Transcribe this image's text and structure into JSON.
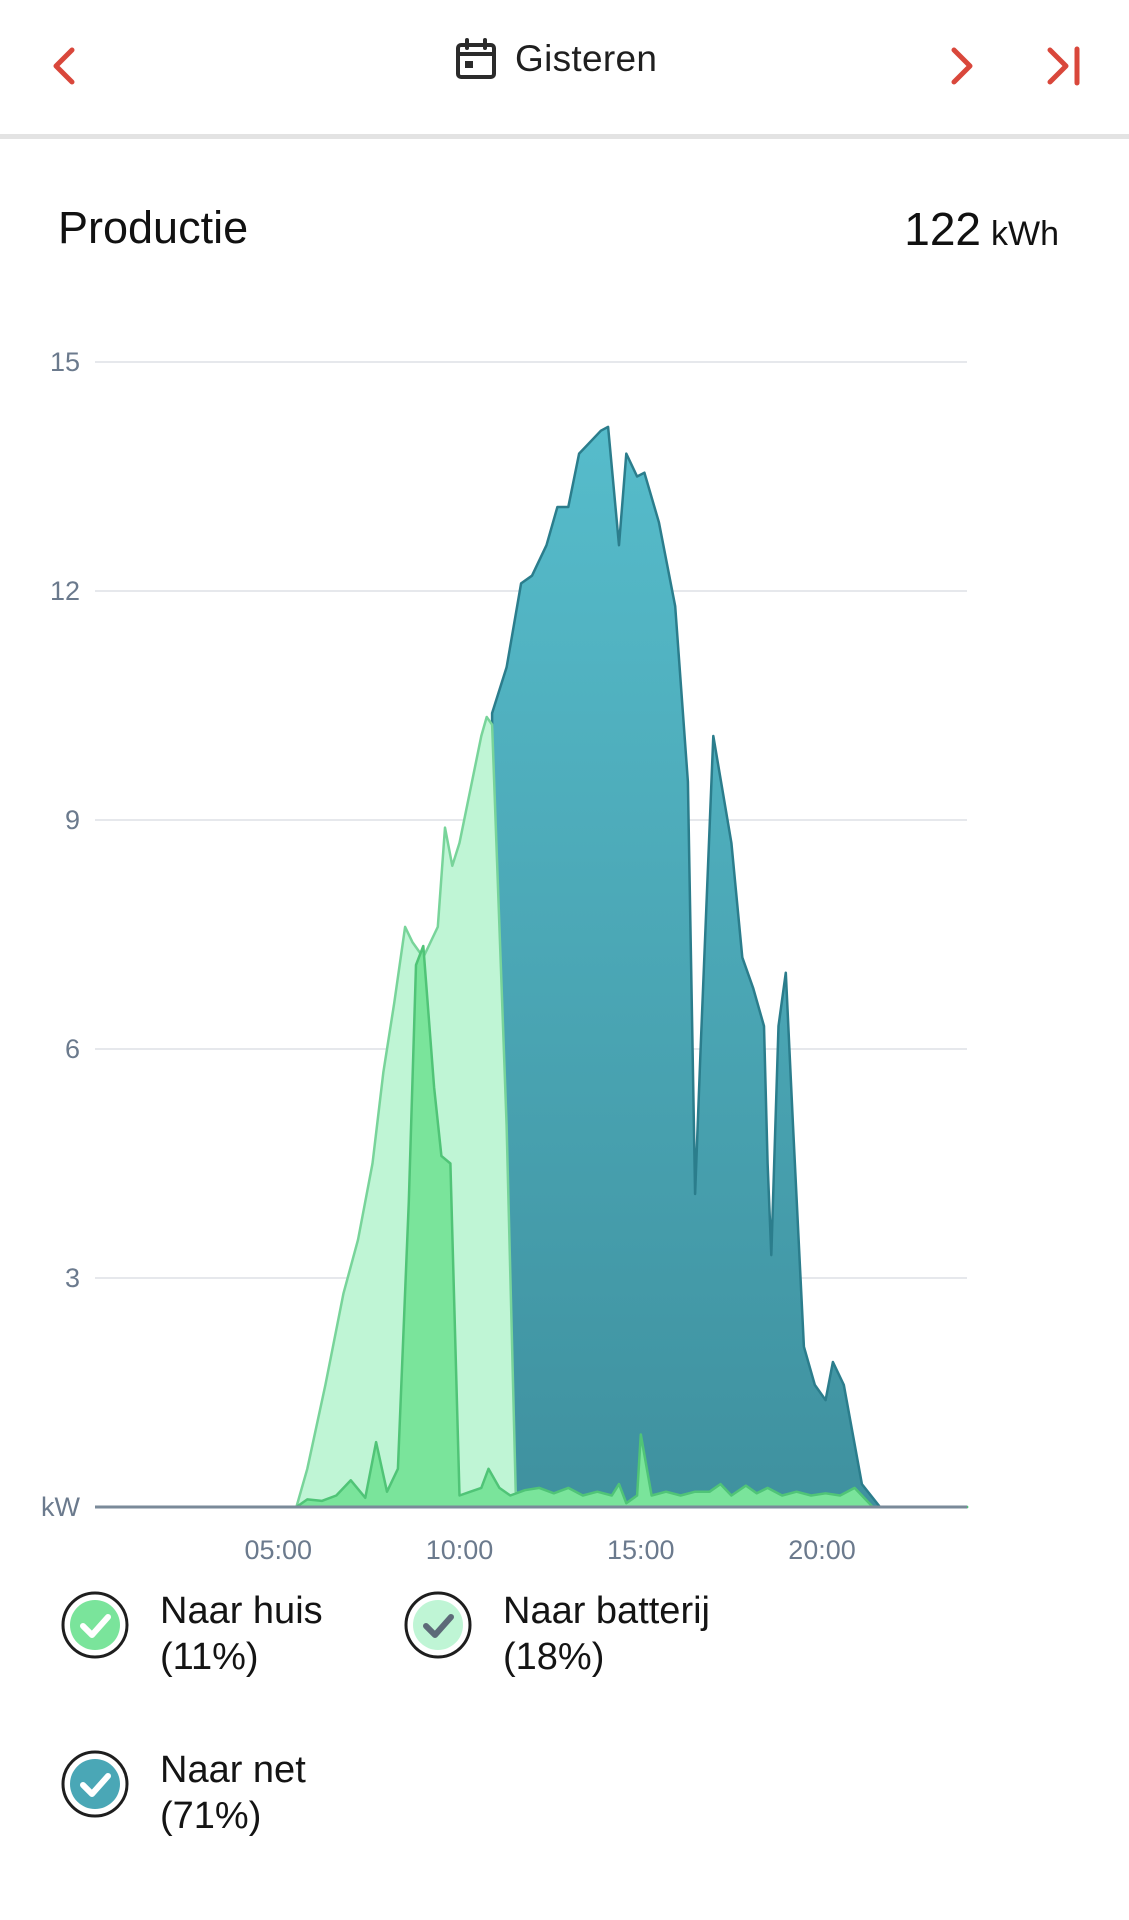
{
  "header": {
    "date_label": "Gisteren",
    "icons": {
      "prev": "chevron-left-icon",
      "calendar": "calendar-icon",
      "next": "chevron-right-icon",
      "last": "skip-to-end-icon"
    },
    "accent_color": "#d9473b"
  },
  "production": {
    "title": "Productie",
    "total_value": "122",
    "total_unit": "kWh"
  },
  "legend": [
    {
      "label": "Naar huis",
      "percent": "(11%)",
      "color": "#7ae49b"
    },
    {
      "label": "Naar batterij",
      "percent": "(18%)",
      "color": "#bff5d5"
    },
    {
      "label": "Naar net",
      "percent": "(71%)",
      "color": "#4aa7b6"
    }
  ],
  "chart_data": {
    "type": "area",
    "ylabel": "kW",
    "ylim": [
      0,
      15
    ],
    "yticks": [
      "kW",
      "3",
      "6",
      "9",
      "12",
      "15"
    ],
    "yticks_values": [
      0,
      3,
      6,
      9,
      12,
      15
    ],
    "xlim": [
      0,
      24
    ],
    "xticks": [
      "05:00",
      "10:00",
      "15:00",
      "20:00"
    ],
    "xticks_values": [
      5,
      10,
      15,
      20
    ],
    "grid": true,
    "stacked": true,
    "series": [
      {
        "name": "Naar huis",
        "color": "#7ae49b",
        "stroke": "#50c477",
        "points": [
          [
            0,
            0
          ],
          [
            5.5,
            0
          ],
          [
            5.8,
            0.1
          ],
          [
            6.2,
            0.08
          ],
          [
            6.6,
            0.15
          ],
          [
            7.0,
            0.35
          ],
          [
            7.4,
            0.12
          ],
          [
            7.7,
            0.85
          ],
          [
            8.0,
            0.2
          ],
          [
            8.3,
            0.5
          ],
          [
            8.6,
            4.0
          ],
          [
            8.8,
            7.1
          ],
          [
            9.0,
            7.35
          ],
          [
            9.3,
            5.5
          ],
          [
            9.5,
            4.6
          ],
          [
            9.75,
            4.5
          ],
          [
            10.0,
            0.15
          ],
          [
            10.3,
            0.2
          ],
          [
            10.6,
            0.25
          ],
          [
            10.8,
            0.5
          ],
          [
            11.1,
            0.25
          ],
          [
            11.4,
            0.15
          ],
          [
            11.8,
            0.22
          ],
          [
            12.2,
            0.25
          ],
          [
            12.6,
            0.18
          ],
          [
            13.0,
            0.25
          ],
          [
            13.4,
            0.15
          ],
          [
            13.8,
            0.2
          ],
          [
            14.2,
            0.15
          ],
          [
            14.4,
            0.3
          ],
          [
            14.6,
            0.05
          ],
          [
            14.9,
            0.15
          ],
          [
            15.0,
            0.95
          ],
          [
            15.3,
            0.15
          ],
          [
            15.7,
            0.2
          ],
          [
            16.1,
            0.15
          ],
          [
            16.5,
            0.2
          ],
          [
            16.9,
            0.2
          ],
          [
            17.2,
            0.3
          ],
          [
            17.5,
            0.15
          ],
          [
            17.9,
            0.28
          ],
          [
            18.2,
            0.18
          ],
          [
            18.5,
            0.25
          ],
          [
            18.9,
            0.15
          ],
          [
            19.3,
            0.2
          ],
          [
            19.7,
            0.15
          ],
          [
            20.1,
            0.18
          ],
          [
            20.5,
            0.15
          ],
          [
            20.9,
            0.25
          ],
          [
            21.4,
            0
          ],
          [
            24,
            0
          ]
        ]
      },
      {
        "name": "Naar batterij",
        "color": "#bff5d5",
        "stroke": "#78d49a",
        "points": [
          [
            0,
            0
          ],
          [
            5.5,
            0
          ],
          [
            5.8,
            0.5
          ],
          [
            6.3,
            1.6
          ],
          [
            6.8,
            2.8
          ],
          [
            7.2,
            3.5
          ],
          [
            7.6,
            4.5
          ],
          [
            7.9,
            5.7
          ],
          [
            8.2,
            6.6
          ],
          [
            8.5,
            7.6
          ],
          [
            8.7,
            7.4
          ],
          [
            9.0,
            7.2
          ],
          [
            9.4,
            7.6
          ],
          [
            9.6,
            8.9
          ],
          [
            9.8,
            8.4
          ],
          [
            10.0,
            8.7
          ],
          [
            10.3,
            9.4
          ],
          [
            10.6,
            10.1
          ],
          [
            10.75,
            10.35
          ],
          [
            10.9,
            10.25
          ],
          [
            11.3,
            5.0
          ],
          [
            11.55,
            0.2
          ],
          [
            12.0,
            0
          ],
          [
            24,
            0
          ]
        ]
      },
      {
        "name": "Naar net",
        "color": "#4aa7b6",
        "stroke": "#2b7d8c",
        "points": [
          [
            0,
            0
          ],
          [
            10.9,
            0
          ],
          [
            10.9,
            10.4
          ],
          [
            11.3,
            11.0
          ],
          [
            11.7,
            12.1
          ],
          [
            12.0,
            12.2
          ],
          [
            12.4,
            12.6
          ],
          [
            12.7,
            13.1
          ],
          [
            13.0,
            13.1
          ],
          [
            13.3,
            13.8
          ],
          [
            13.5,
            13.9
          ],
          [
            13.9,
            14.1
          ],
          [
            14.1,
            14.15
          ],
          [
            14.4,
            12.6
          ],
          [
            14.6,
            13.8
          ],
          [
            14.9,
            13.5
          ],
          [
            15.1,
            13.55
          ],
          [
            15.5,
            12.9
          ],
          [
            15.95,
            11.8
          ],
          [
            16.3,
            9.5
          ],
          [
            16.5,
            4.1
          ],
          [
            16.65,
            6.0
          ],
          [
            17.0,
            10.1
          ],
          [
            17.5,
            8.7
          ],
          [
            17.8,
            7.2
          ],
          [
            18.1,
            6.8
          ],
          [
            18.4,
            6.3
          ],
          [
            18.5,
            4.5
          ],
          [
            18.6,
            3.3
          ],
          [
            18.8,
            6.3
          ],
          [
            19.0,
            7.0
          ],
          [
            19.2,
            5.0
          ],
          [
            19.5,
            2.1
          ],
          [
            19.8,
            1.6
          ],
          [
            20.1,
            1.4
          ],
          [
            20.3,
            1.9
          ],
          [
            20.6,
            1.6
          ],
          [
            21.1,
            0.3
          ],
          [
            21.6,
            0
          ],
          [
            24,
            0
          ]
        ]
      }
    ]
  }
}
